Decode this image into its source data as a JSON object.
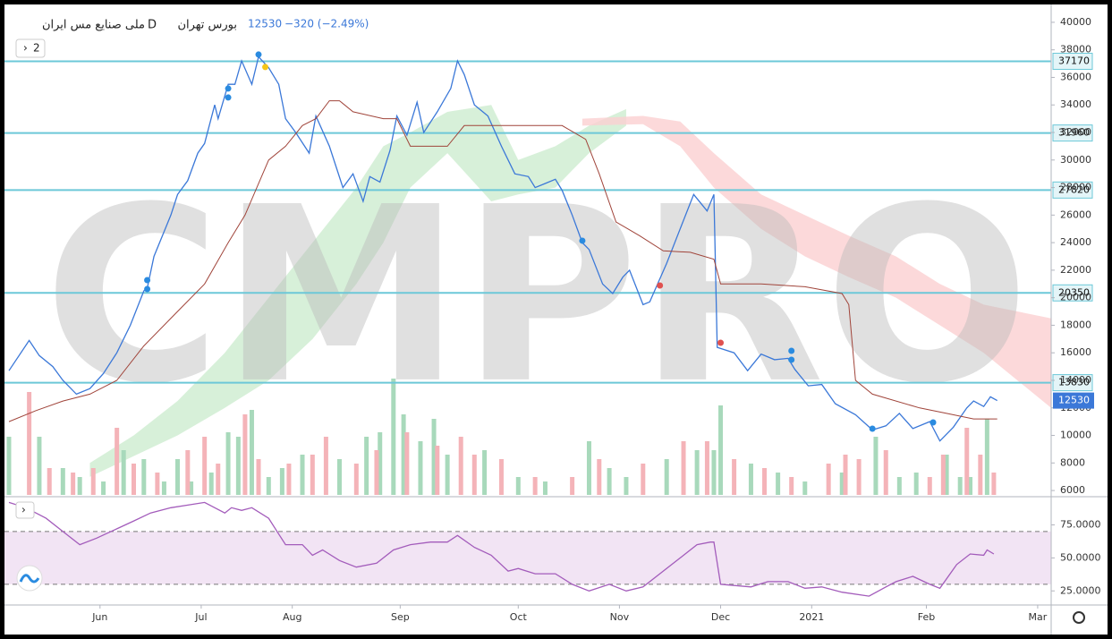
{
  "header": {
    "title": "ملی صنایع مس ایران",
    "interval": "D",
    "exchange": "بورس تهران",
    "change": "−320 (−2.49%)"
  },
  "watermark": "CMPRO",
  "pane_button": "2",
  "chart_data": [
    {
      "type": "line",
      "last_price": 12530,
      "xlim": [
        -27,
        282
      ],
      "xticks": [
        {
          "value": 0,
          "label": "Jun"
        },
        {
          "value": 30,
          "label": "Jul"
        },
        {
          "value": 57,
          "label": "Aug"
        },
        {
          "value": 89,
          "label": "Sep"
        },
        {
          "value": 124,
          "label": "Oct"
        },
        {
          "value": 154,
          "label": "Nov"
        },
        {
          "value": 184,
          "label": "Dec"
        },
        {
          "value": 211,
          "label": "2021"
        },
        {
          "value": 245,
          "label": "Feb"
        },
        {
          "value": 278,
          "label": "Mar"
        }
      ],
      "ylim": [
        5680,
        41100
      ],
      "yticks": [
        6000,
        8000,
        10000,
        12000,
        14000,
        16000,
        18000,
        20000,
        22000,
        24000,
        26000,
        28000,
        30000,
        32000,
        34000,
        36000,
        38000,
        40000
      ],
      "levels": {
        "color": "#6cc8d8",
        "values": [
          37170,
          31960,
          27820,
          20350,
          13830
        ]
      },
      "cloud": [
        {
          "color": "#cdeccf",
          "x": [
            -3,
            10,
            23,
            37,
            50,
            63,
            76,
            84,
            92,
            103,
            116,
            124,
            135,
            145,
            156
          ],
          "upper": [
            8000,
            10000,
            12500,
            16000,
            20000,
            24000,
            28000,
            31000,
            32000,
            33500,
            34000,
            30000,
            31000,
            32500,
            33700
          ],
          "lower": [
            7000,
            8500,
            10000,
            12000,
            14000,
            17000,
            21000,
            24000,
            28000,
            30500,
            27000,
            27500,
            28000,
            30500,
            32500
          ]
        },
        {
          "color": "#fbcfd1",
          "x": [
            143,
            161,
            172,
            182,
            196,
            209,
            222,
            236,
            249,
            262,
            282
          ],
          "upper": [
            33000,
            33200,
            32800,
            30500,
            27500,
            26000,
            24500,
            23000,
            21000,
            19500,
            18500
          ],
          "lower": [
            32500,
            32600,
            31000,
            28000,
            25000,
            23000,
            21500,
            20000,
            18000,
            16000,
            12000
          ]
        }
      ],
      "vlim": [
        0,
        160
      ],
      "volume": [
        {
          "color": "#a8d9bb",
          "x": [
            -27,
            -18,
            -11,
            -6,
            1,
            7,
            13,
            19,
            23,
            27,
            33,
            38,
            41,
            45,
            50,
            54,
            60,
            71,
            79,
            83,
            87,
            90,
            95,
            99,
            103,
            114,
            124,
            132,
            145,
            151,
            156,
            168,
            177,
            182,
            184,
            193,
            201,
            209,
            220,
            230,
            237,
            242,
            251,
            255,
            258,
            263
          ],
          "values": [
            65,
            65,
            30,
            20,
            15,
            50,
            40,
            15,
            40,
            15,
            25,
            70,
            65,
            95,
            20,
            30,
            45,
            40,
            65,
            70,
            130,
            90,
            60,
            85,
            45,
            50,
            20,
            15,
            60,
            30,
            20,
            40,
            50,
            50,
            100,
            35,
            25,
            15,
            25,
            65,
            20,
            25,
            45,
            20,
            20,
            85
          ]
        },
        {
          "color": "#f4b3b8",
          "x": [
            -21,
            -15,
            -8,
            -2,
            5,
            10,
            17,
            26,
            31,
            35,
            43,
            47,
            56,
            63,
            67,
            76,
            82,
            91,
            100,
            107,
            111,
            119,
            129,
            140,
            148,
            161,
            173,
            180,
            188,
            197,
            205,
            216,
            221,
            225,
            233,
            246,
            250,
            257,
            261,
            265
          ],
          "values": [
            115,
            30,
            25,
            30,
            75,
            35,
            25,
            50,
            65,
            35,
            90,
            40,
            35,
            45,
            65,
            35,
            50,
            70,
            55,
            65,
            45,
            40,
            20,
            20,
            40,
            35,
            60,
            60,
            40,
            30,
            20,
            35,
            45,
            40,
            50,
            20,
            45,
            75,
            45,
            25
          ]
        }
      ],
      "series": [
        {
          "color": "#3b78d8",
          "x": [
            -27,
            -21,
            -18,
            -14,
            -11,
            -7,
            -3,
            1,
            5,
            9,
            13,
            14,
            16,
            21,
            23,
            26,
            29,
            31,
            34,
            35,
            38,
            40,
            42,
            45,
            47,
            50,
            53,
            55,
            58,
            62,
            64,
            68,
            72,
            75,
            78,
            80,
            83,
            86,
            88,
            91,
            94,
            96,
            100,
            104,
            106,
            108,
            111,
            115,
            119,
            123,
            127,
            129,
            132,
            135,
            137,
            140,
            143,
            145,
            149,
            152,
            155,
            157,
            161,
            163,
            168,
            172,
            176,
            180,
            182,
            183,
            188,
            192,
            196,
            200,
            204,
            206,
            210,
            214,
            218,
            224,
            229,
            233,
            237,
            241,
            246,
            249,
            253,
            257,
            259,
            262,
            264,
            266
          ],
          "values": [
            14700,
            16900,
            15800,
            15000,
            14000,
            13000,
            13400,
            14500,
            16000,
            18000,
            20500,
            20700,
            23000,
            26000,
            27500,
            28500,
            30500,
            31200,
            34000,
            33000,
            35500,
            35500,
            37200,
            35500,
            37500,
            36700,
            35500,
            33000,
            32000,
            30500,
            33200,
            31000,
            28000,
            29000,
            27000,
            28800,
            28400,
            30700,
            33200,
            31800,
            34200,
            32000,
            33500,
            35200,
            37200,
            36200,
            34000,
            33200,
            31000,
            29000,
            28800,
            28000,
            28300,
            28600,
            27800,
            26000,
            24000,
            23500,
            21000,
            20300,
            21500,
            22000,
            19500,
            19700,
            22500,
            25000,
            27500,
            26300,
            27500,
            16400,
            16000,
            14700,
            15900,
            15500,
            15600,
            14800,
            13600,
            13700,
            12300,
            11500,
            10400,
            10700,
            11600,
            10500,
            11000,
            9600,
            10600,
            12000,
            12500,
            12100,
            12800,
            12530
          ]
        },
        {
          "color": "#a0443a",
          "x": [
            -27,
            -19,
            -11,
            -3,
            5,
            13,
            23,
            31,
            38,
            43,
            50,
            55,
            60,
            64,
            68,
            71,
            75,
            84,
            88,
            92,
            103,
            108,
            114,
            124,
            137,
            144,
            148,
            153,
            160,
            167,
            175,
            182,
            184,
            196,
            209,
            220,
            222,
            224,
            229,
            243,
            251,
            259,
            266
          ],
          "values": [
            11000,
            11800,
            12500,
            13000,
            14000,
            16500,
            19000,
            21000,
            24000,
            26000,
            30000,
            31000,
            32500,
            33000,
            34300,
            34300,
            33500,
            33000,
            33000,
            31000,
            31000,
            32500,
            32500,
            32500,
            32500,
            31500,
            29000,
            25500,
            24500,
            23400,
            23300,
            22800,
            21000,
            21000,
            20800,
            20300,
            19500,
            14000,
            13000,
            12000,
            11600,
            11200,
            11200
          ]
        }
      ],
      "signals": [
        {
          "color": "#2a8be0",
          "x": [
            14,
            14,
            38,
            38,
            47,
            143,
            205,
            205,
            229,
            247
          ],
          "values": [
            21280,
            20630,
            35190,
            34540,
            37660,
            24140,
            16145,
            15495,
            10490,
            10945
          ]
        },
        {
          "color": "#f5c518",
          "x": [
            49
          ],
          "values": [
            36750
          ]
        },
        {
          "color": "#e0514f",
          "x": [
            166,
            184
          ],
          "values": [
            20890,
            16730
          ]
        }
      ]
    },
    {
      "type": "line",
      "ylim": [
        15,
        95
      ],
      "yticks": [
        {
          "value": 25,
          "label": "25.0000"
        },
        {
          "value": 50,
          "label": "50.0000"
        },
        {
          "value": 75,
          "label": "75.0000"
        }
      ],
      "bands": [
        30,
        70
      ],
      "band_color": "#f2e4f4",
      "series": [
        {
          "color": "#a35cbb",
          "x": [
            -27,
            -22,
            -16,
            -11,
            -6,
            -1,
            5,
            10,
            15,
            21,
            26,
            31,
            34,
            37,
            39,
            42,
            45,
            50,
            53,
            55,
            60,
            63,
            66,
            71,
            76,
            82,
            87,
            92,
            98,
            103,
            106,
            111,
            116,
            121,
            124,
            129,
            135,
            140,
            145,
            151,
            156,
            161,
            167,
            172,
            177,
            181,
            182,
            184,
            193,
            198,
            204,
            209,
            214,
            220,
            228,
            233,
            236,
            241,
            246,
            249,
            254,
            258,
            262,
            263,
            265
          ],
          "values": [
            92,
            88,
            80,
            70,
            60,
            65,
            72,
            78,
            84,
            88,
            90,
            92,
            88,
            84,
            88,
            86,
            88,
            80,
            68,
            60,
            60,
            52,
            56,
            48,
            43,
            46,
            56,
            60,
            62,
            62,
            67,
            58,
            52,
            40,
            42,
            38,
            38,
            30,
            25,
            30,
            25,
            28,
            40,
            50,
            60,
            62,
            62,
            30,
            28,
            32,
            32,
            27,
            28,
            24,
            21,
            28,
            32,
            36,
            30,
            27,
            45,
            53,
            52,
            56,
            53
          ]
        }
      ]
    }
  ]
}
